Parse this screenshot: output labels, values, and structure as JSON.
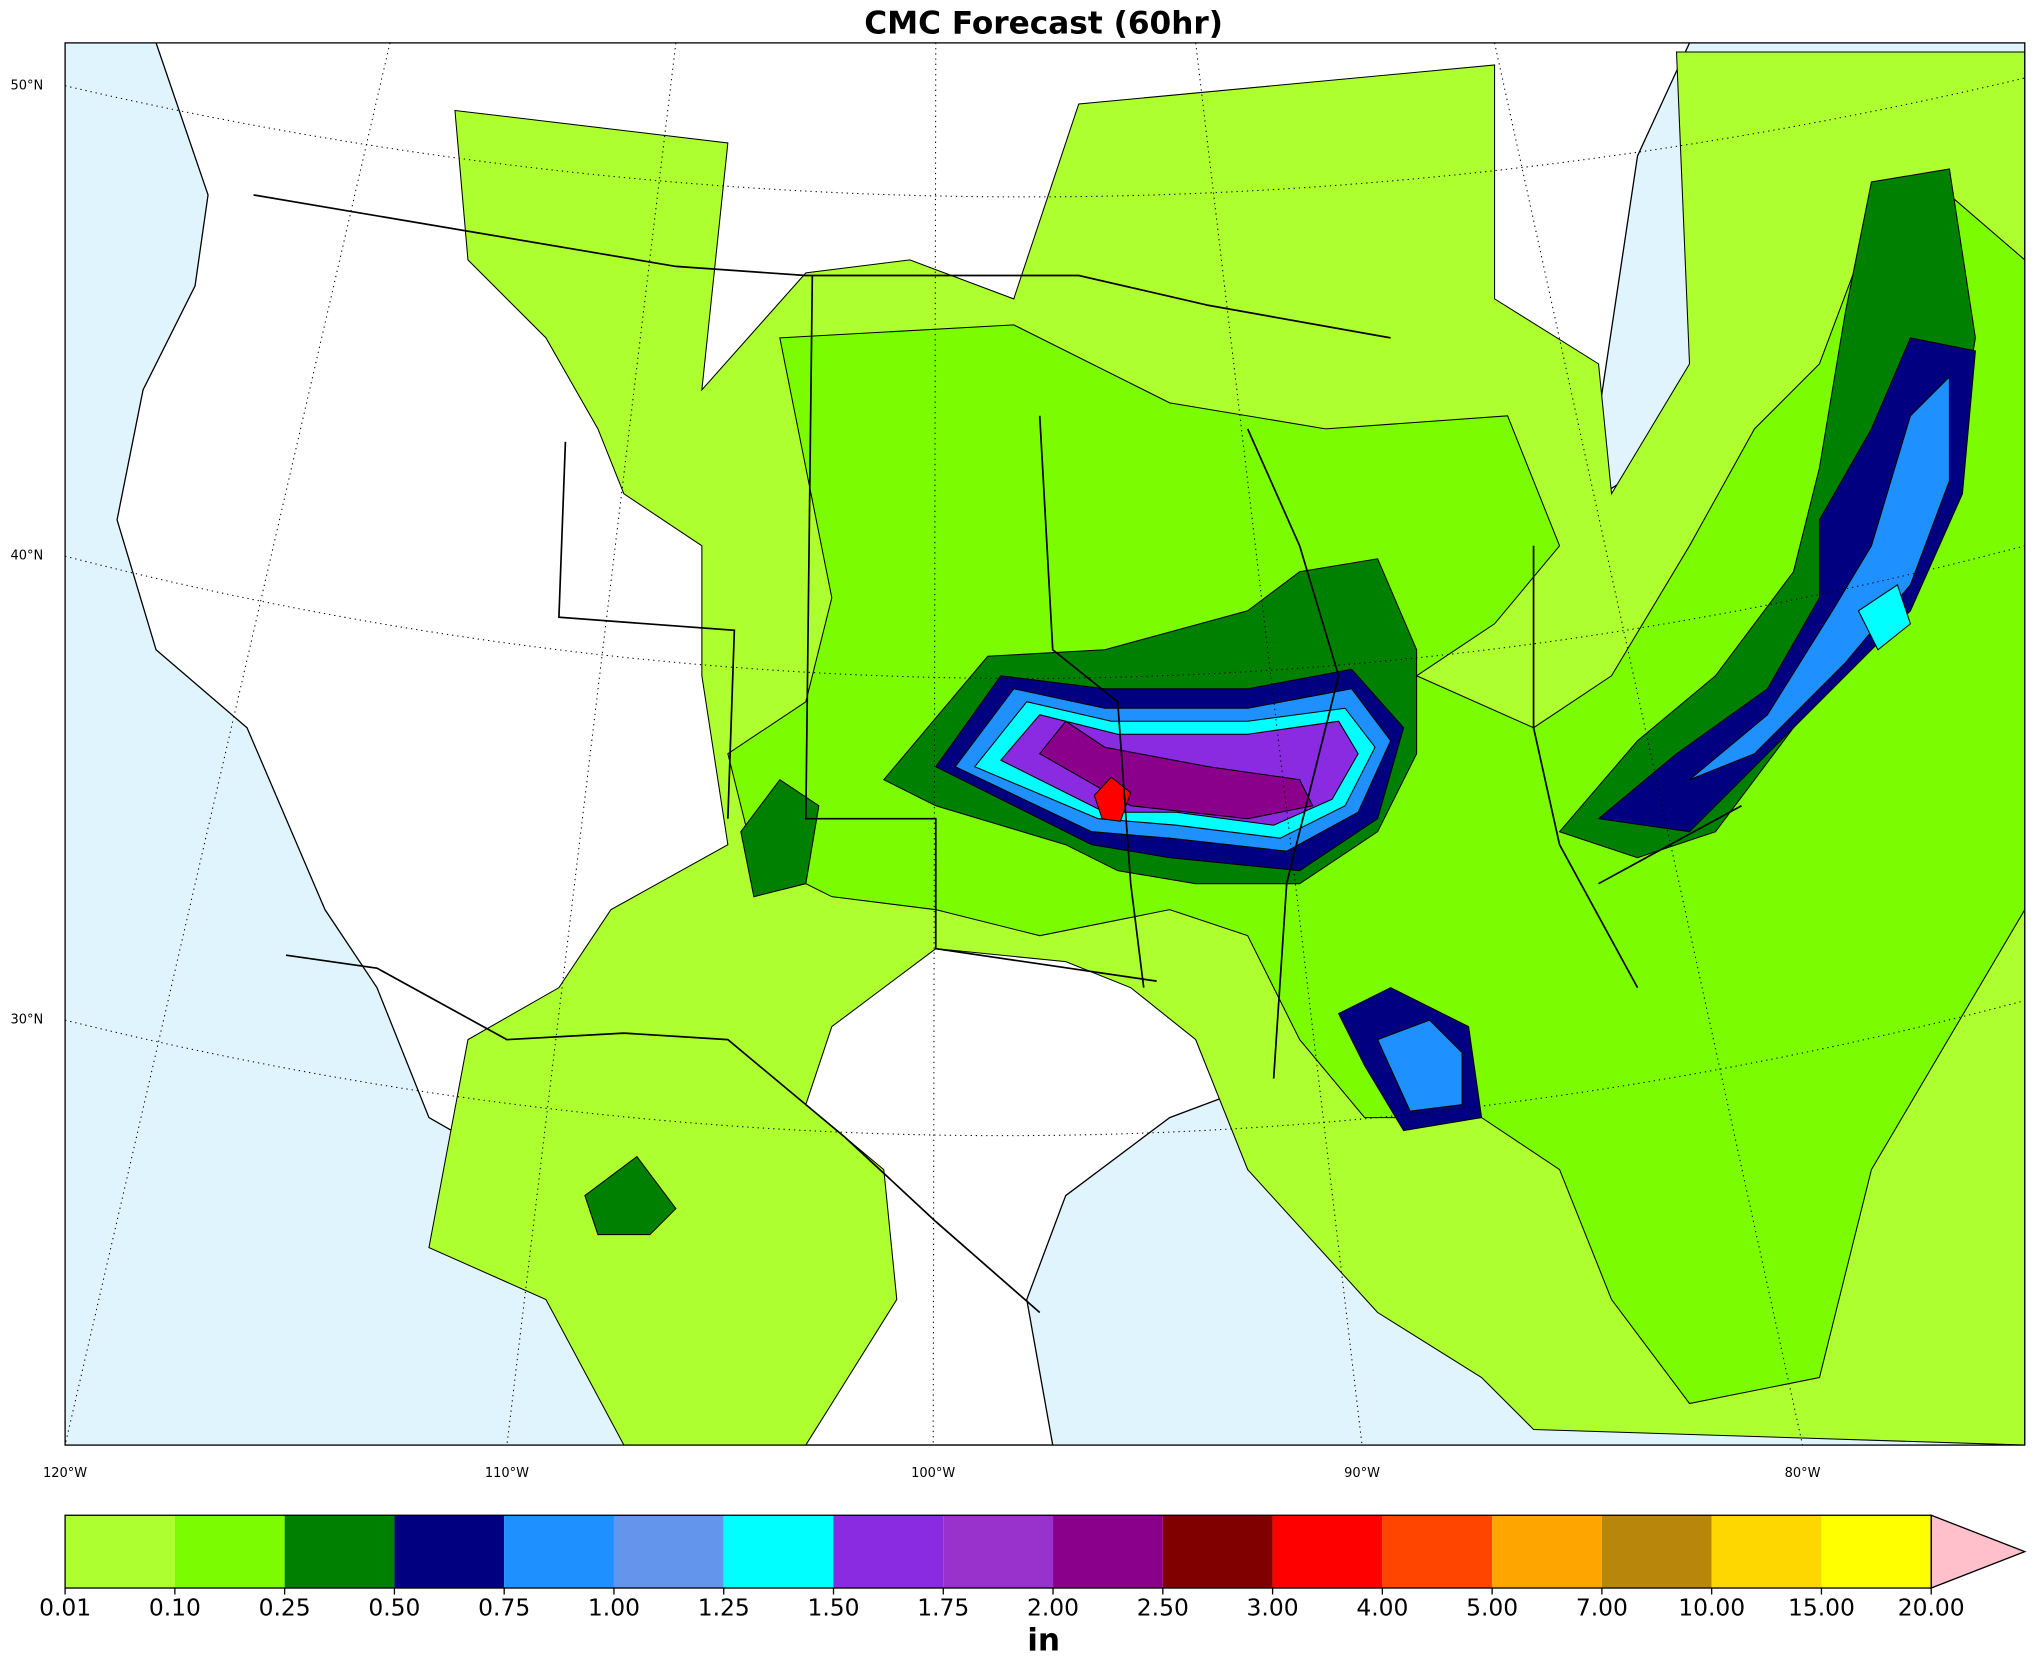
{
  "title": "CMC Forecast (60hr)",
  "map": {
    "lat_labels": [
      "50°N",
      "40°N",
      "30°N"
    ],
    "lon_labels": [
      "120°W",
      "110°W",
      "100°W",
      "90°W",
      "80°W"
    ]
  },
  "colorbar": {
    "unit": "in",
    "levels": [
      {
        "value": 0.01,
        "label": "0.01"
      },
      {
        "value": 0.1,
        "label": "0.10"
      },
      {
        "value": 0.25,
        "label": "0.25"
      },
      {
        "value": 0.5,
        "label": "0.50"
      },
      {
        "value": 0.75,
        "label": "0.75"
      },
      {
        "value": 1,
        "label": "1.00"
      },
      {
        "value": 1.25,
        "label": "1.25"
      },
      {
        "value": 1.5,
        "label": "1.50"
      },
      {
        "value": 1.75,
        "label": "1.75"
      },
      {
        "value": 2,
        "label": "2.00"
      },
      {
        "value": 2.5,
        "label": "2.50"
      },
      {
        "value": 3,
        "label": "3.00"
      },
      {
        "value": 4,
        "label": "4.00"
      },
      {
        "value": 5,
        "label": "5.00"
      },
      {
        "value": 7,
        "label": "7.00"
      },
      {
        "value": 10,
        "label": "10.00"
      },
      {
        "value": 15,
        "label": "15.00"
      },
      {
        "value": 20,
        "label": "20.00"
      }
    ],
    "colors": [
      "#adff2f",
      "#7cfc00",
      "#008000",
      "#000080",
      "#1e90ff",
      "#6495ed",
      "#00ffff",
      "#8a2be2",
      "#9932cc",
      "#8b008b",
      "#800000",
      "#ff0000",
      "#ff4500",
      "#ffa500",
      "#b8860b",
      "#ffd700",
      "#ffff00"
    ],
    "extend_color": "#ffc0cb"
  }
}
